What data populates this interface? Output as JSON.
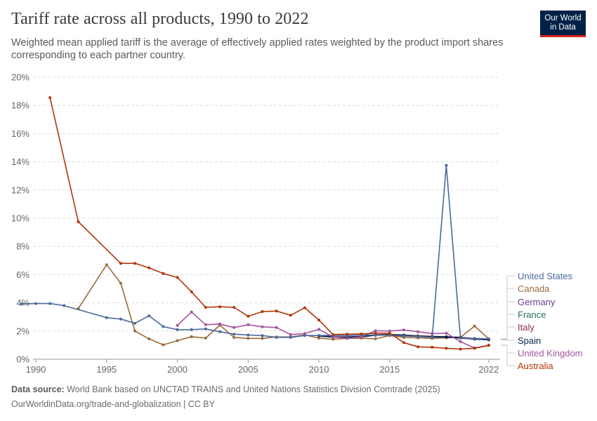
{
  "header": {
    "title": "Tariff rate across all products, 1990 to 2022",
    "subtitle": "Weighted mean applied tariff is the average of effectively applied rates weighted by the product import shares corresponding to each partner country."
  },
  "logo": {
    "line1": "Our World",
    "line2": "in Data",
    "bg_color": "#002147",
    "accent_color": "#ce261e"
  },
  "footer": {
    "source_label": "Data source:",
    "source_text": "World Bank based on UNCTAD TRAINS and United Nations Statistics Division Comtrade (2025)",
    "url_license": "OurWorldinData.org/trade-and-globalization | CC BY"
  },
  "chart_data": {
    "type": "line",
    "x_ticks": [
      1990,
      1995,
      2000,
      2005,
      2010,
      2015,
      2022
    ],
    "y_ticks": [
      "0%",
      "2%",
      "4%",
      "6%",
      "8%",
      "10%",
      "12%",
      "14%",
      "16%",
      "18%",
      "20%"
    ],
    "xlim": [
      1989.8,
      2022.8
    ],
    "ylim": [
      0,
      20
    ],
    "grid": "horizontal-dashed",
    "legend_placement": "right",
    "legend_order": [
      "United States",
      "Canada",
      "Germany",
      "France",
      "Italy",
      "Spain",
      "United Kingdom",
      "Australia"
    ],
    "series": [
      {
        "name": "Canada",
        "color": "#9a6a3a",
        "points": [
          [
            1993,
            3.6
          ],
          [
            1995,
            6.7
          ],
          [
            1996,
            5.4
          ],
          [
            1997,
            2.0
          ],
          [
            1998,
            1.45
          ],
          [
            1999,
            1.02
          ],
          [
            2000,
            1.32
          ],
          [
            2001,
            1.6
          ],
          [
            2002,
            1.5
          ],
          [
            2003,
            2.42
          ],
          [
            2004,
            1.55
          ],
          [
            2005,
            1.48
          ],
          [
            2006,
            1.48
          ],
          [
            2007,
            1.58
          ],
          [
            2008,
            1.58
          ],
          [
            2009,
            1.72
          ],
          [
            2010,
            1.5
          ],
          [
            2011,
            1.42
          ],
          [
            2012,
            1.48
          ],
          [
            2013,
            1.5
          ],
          [
            2014,
            1.45
          ],
          [
            2015,
            1.68
          ],
          [
            2016,
            1.55
          ],
          [
            2017,
            1.52
          ],
          [
            2018,
            1.48
          ],
          [
            2019,
            1.52
          ],
          [
            2020,
            1.55
          ],
          [
            2021,
            2.35
          ],
          [
            2022,
            1.45
          ]
        ]
      },
      {
        "name": "Germany",
        "color": "#6d3e91",
        "points": [
          [
            2010,
            1.68
          ],
          [
            2011,
            1.6
          ],
          [
            2012,
            1.55
          ],
          [
            2013,
            1.58
          ],
          [
            2014,
            1.7
          ],
          [
            2015,
            1.72
          ],
          [
            2016,
            1.68
          ],
          [
            2017,
            1.62
          ],
          [
            2018,
            1.58
          ],
          [
            2019,
            1.55
          ],
          [
            2020,
            1.5
          ],
          [
            2021,
            1.42
          ],
          [
            2022,
            1.38
          ]
        ]
      },
      {
        "name": "France",
        "color": "#286f57",
        "points": [
          [
            2010,
            1.66
          ],
          [
            2011,
            1.58
          ],
          [
            2012,
            1.56
          ],
          [
            2013,
            1.6
          ],
          [
            2014,
            1.72
          ],
          [
            2015,
            1.74
          ],
          [
            2016,
            1.7
          ],
          [
            2017,
            1.64
          ],
          [
            2018,
            1.6
          ],
          [
            2019,
            1.57
          ],
          [
            2020,
            1.52
          ],
          [
            2021,
            1.45
          ],
          [
            2022,
            1.4
          ]
        ]
      },
      {
        "name": "Italy",
        "color": "#883039",
        "points": [
          [
            2010,
            1.65
          ],
          [
            2011,
            1.58
          ],
          [
            2012,
            1.58
          ],
          [
            2013,
            1.62
          ],
          [
            2014,
            1.74
          ],
          [
            2015,
            1.76
          ],
          [
            2016,
            1.72
          ],
          [
            2017,
            1.66
          ],
          [
            2018,
            1.62
          ],
          [
            2019,
            1.6
          ],
          [
            2020,
            1.55
          ],
          [
            2021,
            1.47
          ],
          [
            2022,
            1.42
          ]
        ]
      },
      {
        "name": "Spain",
        "color": "#002147",
        "points": [
          [
            2010,
            1.64
          ],
          [
            2011,
            1.57
          ],
          [
            2012,
            1.57
          ],
          [
            2013,
            1.6
          ],
          [
            2014,
            1.72
          ],
          [
            2015,
            1.74
          ],
          [
            2016,
            1.7
          ],
          [
            2017,
            1.64
          ],
          [
            2018,
            1.6
          ],
          [
            2019,
            1.58
          ],
          [
            2020,
            1.53
          ],
          [
            2021,
            1.46
          ],
          [
            2022,
            1.39
          ]
        ]
      },
      {
        "name": "United Kingdom",
        "color": "#a2559c",
        "points": [
          [
            2000,
            2.4
          ],
          [
            2001,
            3.35
          ],
          [
            2002,
            2.45
          ],
          [
            2003,
            2.5
          ],
          [
            2004,
            2.25
          ],
          [
            2005,
            2.45
          ],
          [
            2006,
            2.3
          ],
          [
            2007,
            2.25
          ],
          [
            2008,
            1.75
          ],
          [
            2009,
            1.82
          ],
          [
            2010,
            2.12
          ],
          [
            2011,
            1.58
          ],
          [
            2012,
            1.48
          ],
          [
            2013,
            1.58
          ],
          [
            2014,
            2.02
          ],
          [
            2015,
            2.0
          ],
          [
            2016,
            2.08
          ],
          [
            2017,
            1.95
          ],
          [
            2018,
            1.82
          ],
          [
            2019,
            1.85
          ],
          [
            2020,
            1.25
          ],
          [
            2021,
            0.8
          ],
          [
            2022,
            1.0
          ]
        ]
      },
      {
        "name": "United States",
        "color": "#4c6a9c",
        "points": [
          [
            1989,
            3.92
          ],
          [
            1990,
            3.95
          ],
          [
            1991,
            3.95
          ],
          [
            1992,
            3.8
          ],
          [
            1995,
            2.95
          ],
          [
            1996,
            2.85
          ],
          [
            1997,
            2.55
          ],
          [
            1998,
            3.08
          ],
          [
            1999,
            2.32
          ],
          [
            2000,
            2.1
          ],
          [
            2001,
            2.1
          ],
          [
            2002,
            2.15
          ],
          [
            2003,
            1.95
          ],
          [
            2004,
            1.78
          ],
          [
            2005,
            1.72
          ],
          [
            2006,
            1.68
          ],
          [
            2007,
            1.55
          ],
          [
            2008,
            1.55
          ],
          [
            2009,
            1.68
          ],
          [
            2010,
            1.68
          ],
          [
            2011,
            1.7
          ],
          [
            2012,
            1.68
          ],
          [
            2013,
            1.72
          ],
          [
            2014,
            1.72
          ],
          [
            2015,
            1.7
          ],
          [
            2016,
            1.65
          ],
          [
            2017,
            1.62
          ],
          [
            2018,
            1.55
          ],
          [
            2019,
            13.75
          ],
          [
            2020,
            1.5
          ],
          [
            2021,
            1.48
          ],
          [
            2022,
            1.45
          ]
        ]
      },
      {
        "name": "Australia",
        "color": "#b13507",
        "points": [
          [
            1991,
            18.55
          ],
          [
            1993,
            9.75
          ],
          [
            1996,
            6.8
          ],
          [
            1997,
            6.8
          ],
          [
            1998,
            6.48
          ],
          [
            1999,
            6.08
          ],
          [
            2000,
            5.8
          ],
          [
            2001,
            4.78
          ],
          [
            2002,
            3.68
          ],
          [
            2003,
            3.72
          ],
          [
            2004,
            3.68
          ],
          [
            2005,
            3.05
          ],
          [
            2006,
            3.38
          ],
          [
            2007,
            3.42
          ],
          [
            2008,
            3.12
          ],
          [
            2009,
            3.65
          ],
          [
            2010,
            2.78
          ],
          [
            2011,
            1.75
          ],
          [
            2012,
            1.78
          ],
          [
            2013,
            1.8
          ],
          [
            2014,
            1.85
          ],
          [
            2015,
            1.85
          ],
          [
            2016,
            1.18
          ],
          [
            2017,
            0.88
          ],
          [
            2018,
            0.85
          ],
          [
            2019,
            0.78
          ],
          [
            2020,
            0.72
          ],
          [
            2021,
            0.78
          ],
          [
            2022,
            0.98
          ]
        ]
      }
    ]
  }
}
